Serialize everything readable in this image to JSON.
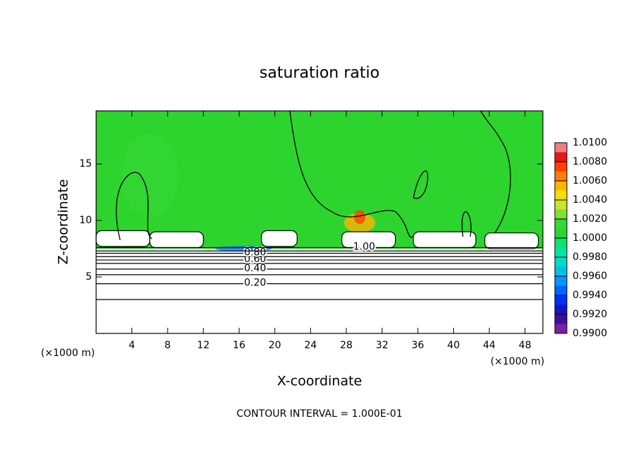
{
  "chart_data": {
    "type": "contour",
    "title": "saturation ratio",
    "xlabel": "X-coordinate",
    "ylabel": "Z-coordinate",
    "x_unit": "(×1000 m)",
    "footnote": "CONTOUR INTERVAL = 1.000E-01",
    "xlim": [
      0,
      50
    ],
    "xticks": [
      4,
      8,
      12,
      16,
      20,
      24,
      28,
      32,
      36,
      40,
      44,
      48
    ],
    "ylim": [
      0,
      19.7
    ],
    "yticks": [
      5,
      10,
      15
    ],
    "field_top_z": 7.5,
    "contours": [
      {
        "level": 0.1,
        "z": 3.0
      },
      {
        "level": 0.2,
        "z": 4.4,
        "label": "0.20"
      },
      {
        "level": 0.3,
        "z": 5.2
      },
      {
        "level": 0.4,
        "z": 5.7,
        "label": "0.40"
      },
      {
        "level": 0.5,
        "z": 6.2
      },
      {
        "level": 0.6,
        "z": 6.5,
        "label": "0.60"
      },
      {
        "level": 0.7,
        "z": 6.8
      },
      {
        "level": 0.8,
        "z": 7.1,
        "label": "0.80"
      },
      {
        "level": 0.9,
        "z": 7.3
      },
      {
        "level": 1.0,
        "z": 7.6,
        "label": "1.00"
      }
    ],
    "colorbar": {
      "lim": [
        0.99,
        1.01
      ],
      "ticks": [
        {
          "value": 0.99,
          "label": "0.9900"
        },
        {
          "value": 0.992,
          "label": "0.9920"
        },
        {
          "value": 0.994,
          "label": "0.9940"
        },
        {
          "value": 0.996,
          "label": "0.9960"
        },
        {
          "value": 0.998,
          "label": "0.9980"
        },
        {
          "value": 1.0,
          "label": "1.0000"
        },
        {
          "value": 1.002,
          "label": "1.0020"
        },
        {
          "value": 1.004,
          "label": "1.0040"
        },
        {
          "value": 1.006,
          "label": "1.0060"
        },
        {
          "value": 1.008,
          "label": "1.0080"
        },
        {
          "value": 1.01,
          "label": "1.0100"
        }
      ],
      "colors": [
        "#7b1fa2",
        "#3c0f9e",
        "#1414c8",
        "#0032f5",
        "#0064ff",
        "#0096ff",
        "#00bfe8",
        "#00dcc8",
        "#00e6a0",
        "#10e070",
        "#2ed42e",
        "#36d836",
        "#7ee03a",
        "#c8e628",
        "#f0e000",
        "#ffb400",
        "#ff8000",
        "#ff4000",
        "#e81818",
        "#f08080"
      ]
    }
  }
}
